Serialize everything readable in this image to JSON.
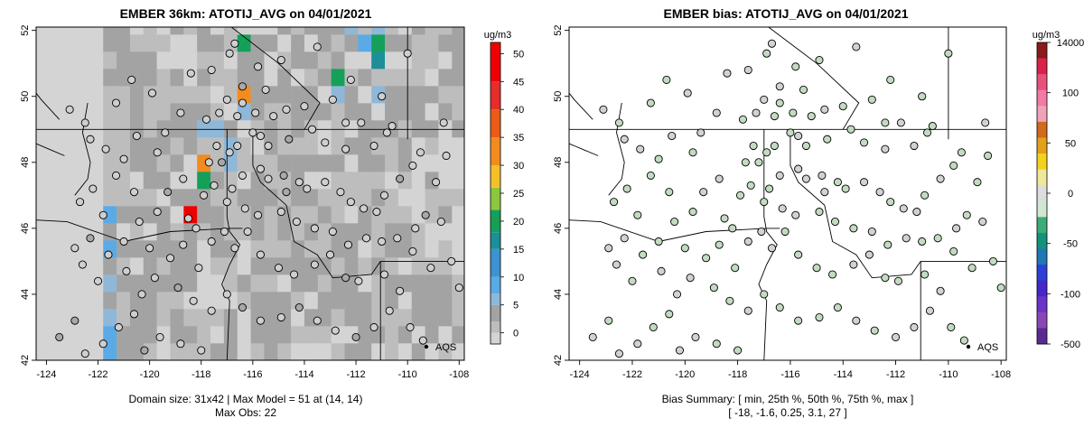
{
  "chart_data": [
    {
      "type": "heatmap",
      "title": "EMBER 36km: ATOTIJ_AVG on 04/01/2021",
      "x_ticks": [
        -124,
        -122,
        -120,
        -118,
        -116,
        -114,
        -112,
        -110,
        -108
      ],
      "y_ticks": [
        42,
        44,
        46,
        48,
        50,
        52
      ],
      "xlim": [
        -124.4,
        -107.8
      ],
      "ylim": [
        42.0,
        52.1
      ],
      "colorbar": {
        "unit": "ug/m3",
        "ticks": [
          0,
          5,
          10,
          15,
          20,
          25,
          30,
          35,
          40,
          45,
          50
        ],
        "range": [
          -2,
          52
        ]
      },
      "legend_label": "AQS",
      "subtitle_line1": "Domain size: 31x42 | Max Model = 51 at (14, 14)",
      "subtitle_line2": "Max Obs: 22",
      "highlight_cells": [
        {
          "lon": -118.8,
          "lat": 46.5,
          "value": 51
        },
        {
          "lon": -117.8,
          "lat": 47.8,
          "value": 32
        },
        {
          "lon": -116.6,
          "lat": 50.1,
          "value": 35
        },
        {
          "lon": -118.2,
          "lat": 47.4,
          "value": 20
        },
        {
          "lon": -116.6,
          "lat": 51.5,
          "value": 22
        },
        {
          "lon": -111.5,
          "lat": 51.3,
          "value": 20
        },
        {
          "lon": -111.5,
          "lat": 50.8,
          "value": 18
        },
        {
          "lon": -112.8,
          "lat": 50.2,
          "value": 20
        }
      ]
    },
    {
      "type": "scatter",
      "title": "EMBER bias: ATOTIJ_AVG on 04/01/2021",
      "x_ticks": [
        -124,
        -122,
        -120,
        -118,
        -116,
        -114,
        -112,
        -110,
        -108
      ],
      "y_ticks": [
        42,
        44,
        46,
        48,
        50,
        52
      ],
      "xlim": [
        -124.4,
        -107.8
      ],
      "ylim": [
        42.0,
        52.1
      ],
      "colorbar": {
        "unit": "ug/m3",
        "ticks": [
          "14000",
          "100",
          "50",
          "0",
          "-50",
          "-100",
          "-500"
        ]
      },
      "legend_label": "AQS",
      "subtitle_line1": "Bias Summary: [ min, 25th %, 50th %, 75th %, max ]",
      "subtitle_line2": "[ -18,  -1.6,  0.25,  3.1,  27 ]",
      "bias_summary": {
        "min": -18,
        "p25": -1.6,
        "p50": 0.25,
        "p75": 3.1,
        "max": 27
      }
    }
  ],
  "stations": [
    [
      -116.7,
      51.6
    ],
    [
      -116.9,
      51.3
    ],
    [
      -117.6,
      50.8
    ],
    [
      -116.4,
      50.3
    ],
    [
      -115.5,
      50.2
    ],
    [
      -117.0,
      49.9
    ],
    [
      -116.4,
      49.8
    ],
    [
      -117.3,
      49.5
    ],
    [
      -116.6,
      49.4
    ],
    [
      -117.8,
      49.3
    ],
    [
      -115.9,
      49.5
    ],
    [
      -115.2,
      49.4
    ],
    [
      -114.7,
      49.6
    ],
    [
      -114.0,
      49.7
    ],
    [
      -112.9,
      49.9
    ],
    [
      -112.4,
      49.2
    ],
    [
      -111.8,
      49.2
    ],
    [
      -113.7,
      49.0
    ],
    [
      -115.7,
      48.8
    ],
    [
      -116.0,
      48.9
    ],
    [
      -114.6,
      48.7
    ],
    [
      -113.2,
      48.6
    ],
    [
      -112.4,
      48.4
    ],
    [
      -111.3,
      48.5
    ],
    [
      -110.8,
      48.9
    ],
    [
      -110.6,
      49.1
    ],
    [
      -115.4,
      48.5
    ],
    [
      -116.6,
      48.5
    ],
    [
      -117.4,
      48.5
    ],
    [
      -116.9,
      48.3
    ],
    [
      -117.7,
      48.0
    ],
    [
      -117.2,
      48.0
    ],
    [
      -116.4,
      47.6
    ],
    [
      -115.7,
      47.8
    ],
    [
      -115.4,
      47.5
    ],
    [
      -114.8,
      47.6
    ],
    [
      -114.2,
      47.4
    ],
    [
      -114.7,
      47.1
    ],
    [
      -113.9,
      47.2
    ],
    [
      -113.2,
      47.4
    ],
    [
      -112.6,
      47.1
    ],
    [
      -112.2,
      46.8
    ],
    [
      -111.7,
      46.6
    ],
    [
      -111.2,
      46.5
    ],
    [
      -110.9,
      47.0
    ],
    [
      -110.3,
      47.5
    ],
    [
      -109.8,
      47.9
    ],
    [
      -109.5,
      48.3
    ],
    [
      -108.5,
      48.2
    ],
    [
      -116.8,
      47.2
    ],
    [
      -117.5,
      47.3
    ],
    [
      -117.9,
      47.0
    ],
    [
      -117.0,
      46.8
    ],
    [
      -116.3,
      46.6
    ],
    [
      -115.8,
      46.4
    ],
    [
      -114.9,
      46.5
    ],
    [
      -114.3,
      46.2
    ],
    [
      -113.6,
      46.0
    ],
    [
      -112.9,
      45.9
    ],
    [
      -112.3,
      45.5
    ],
    [
      -111.6,
      45.7
    ],
    [
      -111.0,
      45.6
    ],
    [
      -110.4,
      45.7
    ],
    [
      -109.7,
      46.0
    ],
    [
      -109.3,
      46.4
    ],
    [
      -108.7,
      46.2
    ],
    [
      -118.5,
      46.3
    ],
    [
      -118.2,
      46.0
    ],
    [
      -117.6,
      45.6
    ],
    [
      -117.1,
      45.9
    ],
    [
      -116.7,
      45.4
    ],
    [
      -116.2,
      45.9
    ],
    [
      -115.7,
      45.2
    ],
    [
      -115.0,
      44.8
    ],
    [
      -114.4,
      44.6
    ],
    [
      -113.6,
      44.9
    ],
    [
      -113.0,
      45.2
    ],
    [
      -112.4,
      44.5
    ],
    [
      -111.9,
      44.4
    ],
    [
      -118.7,
      45.5
    ],
    [
      -119.2,
      45.1
    ],
    [
      -119.8,
      44.5
    ],
    [
      -120.3,
      44.0
    ],
    [
      -118.9,
      44.2
    ],
    [
      -118.3,
      43.8
    ],
    [
      -117.6,
      43.5
    ],
    [
      -117.0,
      44.0
    ],
    [
      -116.4,
      43.6
    ],
    [
      -115.7,
      43.2
    ],
    [
      -114.9,
      43.3
    ],
    [
      -114.2,
      43.6
    ],
    [
      -113.5,
      43.2
    ],
    [
      -112.8,
      42.9
    ],
    [
      -112.0,
      42.7
    ],
    [
      -111.3,
      43.0
    ],
    [
      -110.7,
      43.5
    ],
    [
      -109.9,
      43.0
    ],
    [
      -109.4,
      42.6
    ],
    [
      -120.6,
      43.4
    ],
    [
      -121.2,
      43.0
    ],
    [
      -121.8,
      42.5
    ],
    [
      -120.2,
      42.3
    ],
    [
      -119.6,
      42.7
    ],
    [
      -118.8,
      42.5
    ],
    [
      -118.0,
      42.3
    ],
    [
      -122.0,
      44.4
    ],
    [
      -122.6,
      44.9
    ],
    [
      -122.9,
      45.4
    ],
    [
      -122.3,
      45.7
    ],
    [
      -121.6,
      45.2
    ],
    [
      -121.0,
      45.6
    ],
    [
      -120.4,
      46.2
    ],
    [
      -119.7,
      46.5
    ],
    [
      -119.3,
      47.1
    ],
    [
      -118.7,
      47.5
    ],
    [
      -120.6,
      47.1
    ],
    [
      -121.3,
      47.6
    ],
    [
      -122.2,
      47.2
    ],
    [
      -122.7,
      46.8
    ],
    [
      -121.8,
      46.4
    ],
    [
      -121.0,
      48.1
    ],
    [
      -121.7,
      48.4
    ],
    [
      -122.3,
      48.7
    ],
    [
      -120.5,
      48.8
    ],
    [
      -119.7,
      48.3
    ],
    [
      -119.4,
      48.9
    ],
    [
      -118.8,
      49.5
    ],
    [
      -119.9,
      50.1
    ],
    [
      -120.7,
      50.5
    ],
    [
      -121.3,
      49.8
    ],
    [
      -122.5,
      49.2
    ],
    [
      -123.1,
      49.6
    ],
    [
      -118.4,
      50.7
    ],
    [
      -115.8,
      50.9
    ],
    [
      -114.9,
      51.1
    ],
    [
      -113.5,
      51.5
    ],
    [
      -112.2,
      50.5
    ],
    [
      -111.0,
      50.0
    ],
    [
      -110.0,
      51.3
    ],
    [
      -108.6,
      49.2
    ],
    [
      -109.8,
      45.3
    ],
    [
      -109.1,
      44.8
    ],
    [
      -108.3,
      45.0
    ],
    [
      -108.0,
      44.2
    ],
    [
      -110.3,
      44.1
    ],
    [
      -122.9,
      43.2
    ],
    [
      -123.5,
      42.7
    ],
    [
      -122.5,
      42.2
    ],
    [
      -120.9,
      44.7
    ],
    [
      -120.0,
      45.4
    ],
    [
      -110.9,
      44.6
    ],
    [
      -108.9,
      47.4
    ],
    [
      -118.1,
      44.8
    ]
  ]
}
